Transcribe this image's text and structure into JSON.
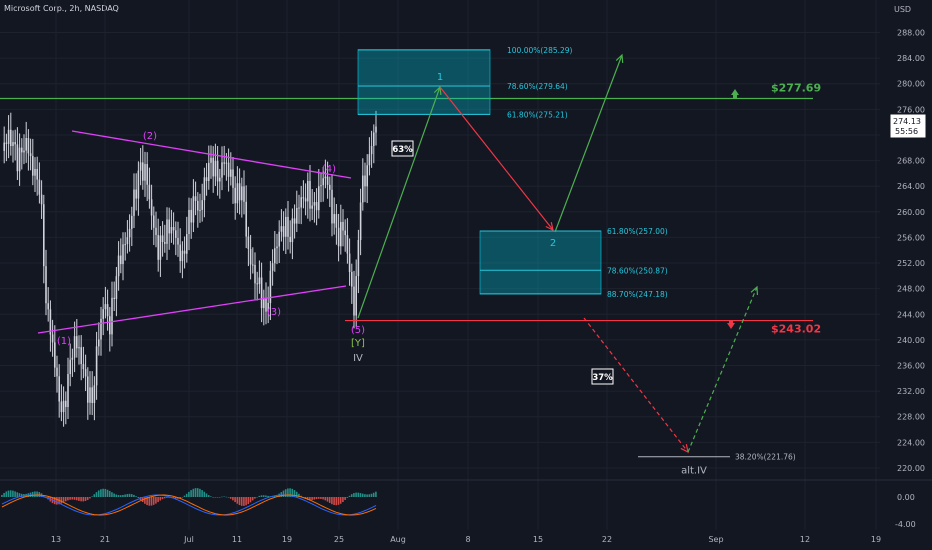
{
  "header": {
    "title": "Microsoft Corp., 2h, NASDAQ",
    "currency": "USD"
  },
  "colors": {
    "background": "#131722",
    "candle": "#d1d4dc",
    "grid": "#1e222d",
    "triangle": "#e040fb",
    "green": "#4caf50",
    "red": "#f23645",
    "teal_box": "#00bcd4",
    "label_cyan": "#26c6da"
  },
  "chart_data": {
    "type": "candlestick",
    "price_axis": {
      "ticks": [
        "288.00",
        "284.00",
        "280.00",
        "276.00",
        "272.00",
        "268.00",
        "264.00",
        "260.00",
        "256.00",
        "252.00",
        "248.00",
        "244.00",
        "240.00",
        "236.00",
        "232.00",
        "228.00",
        "224.00",
        "220.00"
      ],
      "range": [
        218,
        291
      ],
      "current_price": "274.13",
      "countdown": "55:56"
    },
    "time_axis": {
      "ticks": [
        "13",
        "21",
        "Jul",
        "11",
        "19",
        "25",
        "Aug",
        "8",
        "15",
        "22",
        "Sep",
        "12",
        "19"
      ]
    },
    "indicator_axis": {
      "ticks": [
        "0.00",
        "-4.00"
      ]
    },
    "levels": {
      "resistance": {
        "label": "$277.69",
        "value": 277.69
      },
      "support": {
        "label": "$243.02",
        "value": 243.02
      }
    },
    "fib_box_1": {
      "levels": [
        {
          "label": "100.00%(285.29)",
          "value": 285.29
        },
        {
          "label": "78.60%(279.64)",
          "value": 279.64
        },
        {
          "label": "61.80%(275.21)",
          "value": 275.21
        }
      ],
      "wave_label": "1"
    },
    "fib_box_2": {
      "levels": [
        {
          "label": "61.80%(257.00)",
          "value": 257.0
        },
        {
          "label": "78.60%(250.87)",
          "value": 250.87
        },
        {
          "label": "88.70%(247.18)",
          "value": 247.18
        }
      ],
      "wave_label": "2"
    },
    "alt_level": {
      "label": "38.20%(221.76)",
      "value": 221.76,
      "wave_label": "alt.IV"
    },
    "probabilities": {
      "main": "63%",
      "alt": "37%"
    },
    "wave_labels": {
      "w1": "(1)",
      "w2": "(2)",
      "w3": "(3)",
      "w4": "(4)",
      "w5": "(5)",
      "wY": "[Y]",
      "wIV": "IV"
    }
  }
}
